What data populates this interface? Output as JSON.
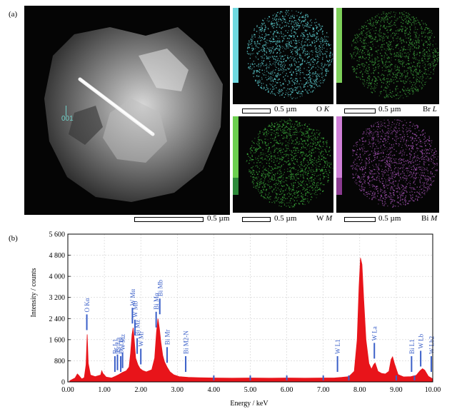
{
  "panel_a": {
    "label": "(a)",
    "haadf": {
      "spot_label": "001",
      "scale_text": "0.5 µm"
    },
    "maps": [
      {
        "scale_text": "0.5 µm",
        "element": "O",
        "line": "K",
        "color": "#5fd3d6",
        "strip_color": "#6fd8e0"
      },
      {
        "scale_text": "0.5 µm",
        "element": "Br",
        "line": "L",
        "color": "#3a9a3a",
        "strip_color": "#7ed05a"
      },
      {
        "scale_text": "0.5 µm",
        "element": "W",
        "line": "M",
        "color": "#3aa83a",
        "strip_color": "#6ccf4f"
      },
      {
        "scale_text": "0.5 µm",
        "element": "Bi",
        "line": "M",
        "color": "#a050b0",
        "strip_color": "#d080d8"
      }
    ]
  },
  "panel_b": {
    "label": "(b)"
  },
  "chart_data": {
    "type": "area",
    "title": "",
    "xlabel": "Energy / keV",
    "ylabel": "Intensity / counts",
    "xlim": [
      0,
      10
    ],
    "ylim": [
      0,
      5600
    ],
    "xticks": [
      "0.00",
      "1.00",
      "2.00",
      "3.00",
      "4.00",
      "5.00",
      "6.00",
      "7.00",
      "8.00",
      "9.00",
      "10.00"
    ],
    "yticks": [
      "0",
      "800",
      "1 600",
      "2 400",
      "3 200",
      "4 000",
      "4 800",
      "5 600"
    ],
    "fill_color": "#e8141a",
    "marker_color": "#3a5fc8",
    "series": [
      {
        "points": [
          [
            0.05,
            40
          ],
          [
            0.2,
            150
          ],
          [
            0.26,
            300
          ],
          [
            0.3,
            250
          ],
          [
            0.38,
            110
          ],
          [
            0.45,
            160
          ],
          [
            0.5,
            650
          ],
          [
            0.53,
            1800
          ],
          [
            0.56,
            700
          ],
          [
            0.62,
            260
          ],
          [
            0.75,
            200
          ],
          [
            0.9,
            260
          ],
          [
            0.93,
            420
          ],
          [
            0.96,
            320
          ],
          [
            1.05,
            180
          ],
          [
            1.2,
            150
          ],
          [
            1.3,
            210
          ],
          [
            1.4,
            280
          ],
          [
            1.5,
            360
          ],
          [
            1.6,
            420
          ],
          [
            1.68,
            560
          ],
          [
            1.72,
            1100
          ],
          [
            1.76,
            1800
          ],
          [
            1.79,
            2050
          ],
          [
            1.82,
            1600
          ],
          [
            1.86,
            900
          ],
          [
            1.92,
            650
          ],
          [
            1.98,
            500
          ],
          [
            2.05,
            430
          ],
          [
            2.15,
            380
          ],
          [
            2.3,
            460
          ],
          [
            2.38,
            900
          ],
          [
            2.43,
            1900
          ],
          [
            2.47,
            2400
          ],
          [
            2.51,
            2000
          ],
          [
            2.55,
            1500
          ],
          [
            2.6,
            1000
          ],
          [
            2.65,
            760
          ],
          [
            2.72,
            560
          ],
          [
            2.8,
            380
          ],
          [
            2.9,
            270
          ],
          [
            3.05,
            200
          ],
          [
            3.3,
            170
          ],
          [
            3.6,
            160
          ],
          [
            4.0,
            150
          ],
          [
            4.5,
            140
          ],
          [
            5.0,
            150
          ],
          [
            5.5,
            140
          ],
          [
            6.0,
            150
          ],
          [
            6.5,
            140
          ],
          [
            7.0,
            150
          ],
          [
            7.3,
            150
          ],
          [
            7.5,
            170
          ],
          [
            7.7,
            200
          ],
          [
            7.85,
            400
          ],
          [
            7.93,
            1600
          ],
          [
            7.98,
            3600
          ],
          [
            8.02,
            4700
          ],
          [
            8.06,
            4450
          ],
          [
            8.11,
            3100
          ],
          [
            8.17,
            1600
          ],
          [
            8.25,
            700
          ],
          [
            8.32,
            480
          ],
          [
            8.38,
            650
          ],
          [
            8.42,
            720
          ],
          [
            8.5,
            400
          ],
          [
            8.6,
            320
          ],
          [
            8.7,
            300
          ],
          [
            8.8,
            400
          ],
          [
            8.86,
            850
          ],
          [
            8.9,
            950
          ],
          [
            8.95,
            700
          ],
          [
            9.05,
            280
          ],
          [
            9.2,
            190
          ],
          [
            9.4,
            200
          ],
          [
            9.55,
            250
          ],
          [
            9.65,
            420
          ],
          [
            9.72,
            500
          ],
          [
            9.78,
            440
          ],
          [
            9.88,
            210
          ],
          [
            10.0,
            110
          ]
        ]
      }
    ],
    "peak_markers": [
      {
        "x": 0.52,
        "label": "O Kα"
      },
      {
        "x": 1.29,
        "label": "Br L1"
      },
      {
        "x": 1.36,
        "label": "Br La"
      },
      {
        "x": 1.45,
        "label": "Br Lb"
      },
      {
        "x": 1.5,
        "label": "W Mz"
      },
      {
        "x": 1.77,
        "label": "W Mα"
      },
      {
        "x": 1.84,
        "label": "W Mb"
      },
      {
        "x": 1.9,
        "label": "Bi Mz"
      },
      {
        "x": 2.0,
        "label": "W Mr"
      },
      {
        "x": 2.42,
        "label": "Bi Mα"
      },
      {
        "x": 2.52,
        "label": "Bi Mb"
      },
      {
        "x": 2.72,
        "label": "Bi Mr"
      },
      {
        "x": 3.23,
        "label": "Bi M2-N"
      },
      {
        "x": 7.39,
        "label": "W L1"
      },
      {
        "x": 8.4,
        "label": "W La"
      },
      {
        "x": 9.42,
        "label": "Bi L1"
      },
      {
        "x": 9.67,
        "label": "W Lb"
      },
      {
        "x": 9.96,
        "label": "W Lb2"
      }
    ],
    "small_ticks_x": [
      4.0,
      5.0,
      6.0,
      7.0,
      7.7,
      9.0,
      9.5
    ]
  }
}
